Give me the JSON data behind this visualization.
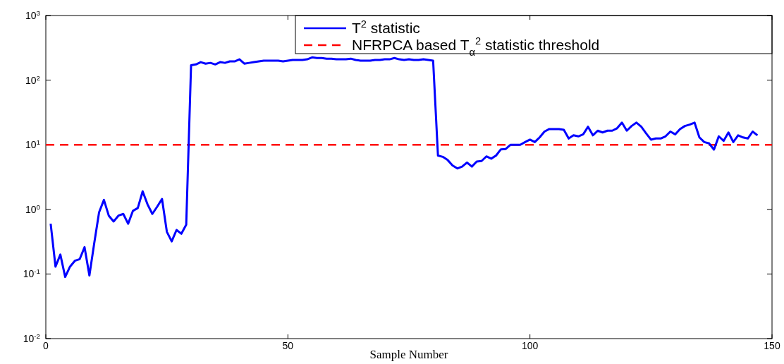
{
  "chart_data": {
    "type": "line",
    "xlabel": "Sample Number",
    "x": [
      1,
      2,
      3,
      4,
      5,
      6,
      7,
      8,
      9,
      10,
      11,
      12,
      13,
      14,
      15,
      16,
      17,
      18,
      19,
      20,
      21,
      22,
      23,
      24,
      25,
      26,
      27,
      28,
      29,
      30,
      31,
      32,
      33,
      34,
      35,
      36,
      37,
      38,
      39,
      40,
      41,
      42,
      43,
      44,
      45,
      46,
      47,
      48,
      49,
      50,
      51,
      52,
      53,
      54,
      55,
      56,
      57,
      58,
      59,
      60,
      61,
      62,
      63,
      64,
      65,
      66,
      67,
      68,
      69,
      70,
      71,
      72,
      73,
      74,
      75,
      76,
      77,
      78,
      79,
      80,
      81,
      82,
      83,
      84,
      85,
      86,
      87,
      88,
      89,
      90,
      91,
      92,
      93,
      94,
      95,
      96,
      97,
      98,
      99,
      100,
      101,
      102,
      103,
      104,
      105,
      106,
      107,
      108,
      109,
      110,
      111,
      112,
      113,
      114,
      115,
      116,
      117,
      118,
      119,
      120,
      121,
      122,
      123,
      124,
      125,
      126,
      127,
      128,
      129,
      130,
      131,
      132,
      133,
      134,
      135,
      136,
      137,
      138,
      139,
      140,
      141,
      142,
      143,
      144,
      145,
      146,
      147
    ],
    "series": [
      {
        "name": "T$^{2}$ statistic",
        "color": "#0000ff",
        "values": [
          0.6,
          0.13,
          0.2,
          0.09,
          0.13,
          0.16,
          0.17,
          0.26,
          0.095,
          0.3,
          0.9,
          1.4,
          0.8,
          0.65,
          0.8,
          0.85,
          0.6,
          0.95,
          1.05,
          1.9,
          1.2,
          0.85,
          1.1,
          1.45,
          0.45,
          0.32,
          0.48,
          0.42,
          0.58,
          170,
          175,
          190,
          180,
          185,
          175,
          190,
          185,
          195,
          195,
          210,
          180,
          185,
          190,
          195,
          200,
          200,
          200,
          200,
          195,
          200,
          205,
          205,
          205,
          210,
          225,
          220,
          220,
          215,
          215,
          210,
          210,
          210,
          215,
          205,
          200,
          200,
          200,
          205,
          205,
          210,
          210,
          220,
          210,
          205,
          210,
          205,
          205,
          210,
          205,
          200,
          6.8,
          6.5,
          5.8,
          4.8,
          4.3,
          4.6,
          5.3,
          4.6,
          5.5,
          5.6,
          6.6,
          6.1,
          6.8,
          8.5,
          8.6,
          10,
          10,
          10,
          11,
          12,
          11,
          13,
          16,
          17.5,
          17.5,
          17.5,
          17,
          12.5,
          14,
          13.5,
          14.5,
          19,
          14,
          16.5,
          15.5,
          16.5,
          16.5,
          18,
          22,
          16.5,
          19.5,
          22,
          19,
          15,
          12,
          12.5,
          12.5,
          13.5,
          16,
          14.5,
          17.5,
          19.5,
          20.5,
          22,
          13,
          11,
          10.5,
          8.4,
          13.5,
          11.5,
          15.5,
          11,
          14,
          13,
          12.5,
          16,
          14
        ]
      }
    ],
    "ref_lines": [
      {
        "axis": "y",
        "value": 10,
        "label": "NFRPCA based T$_{α}$$^{2}$ statistic threshold",
        "color": "#ff0000",
        "line_style": "dashed"
      }
    ],
    "xlim": [
      0,
      150
    ],
    "xticks": [
      0,
      50,
      100,
      150
    ],
    "ylim": [
      0.01,
      1000
    ],
    "yticks": [
      {
        "value": 0.01,
        "label": "10$^{-2}$"
      },
      {
        "value": 0.1,
        "label": "10$^{-1}$"
      },
      {
        "value": 1,
        "label": "10$^{0}$"
      },
      {
        "value": 10,
        "label": "10$^{1}$"
      },
      {
        "value": 100,
        "label": "10$^{2}$"
      },
      {
        "value": 1000,
        "label": "10$^{3}$"
      }
    ],
    "log": "y",
    "grid": false,
    "legend": "top right",
    "line_style": "solid",
    "marker": "none"
  }
}
